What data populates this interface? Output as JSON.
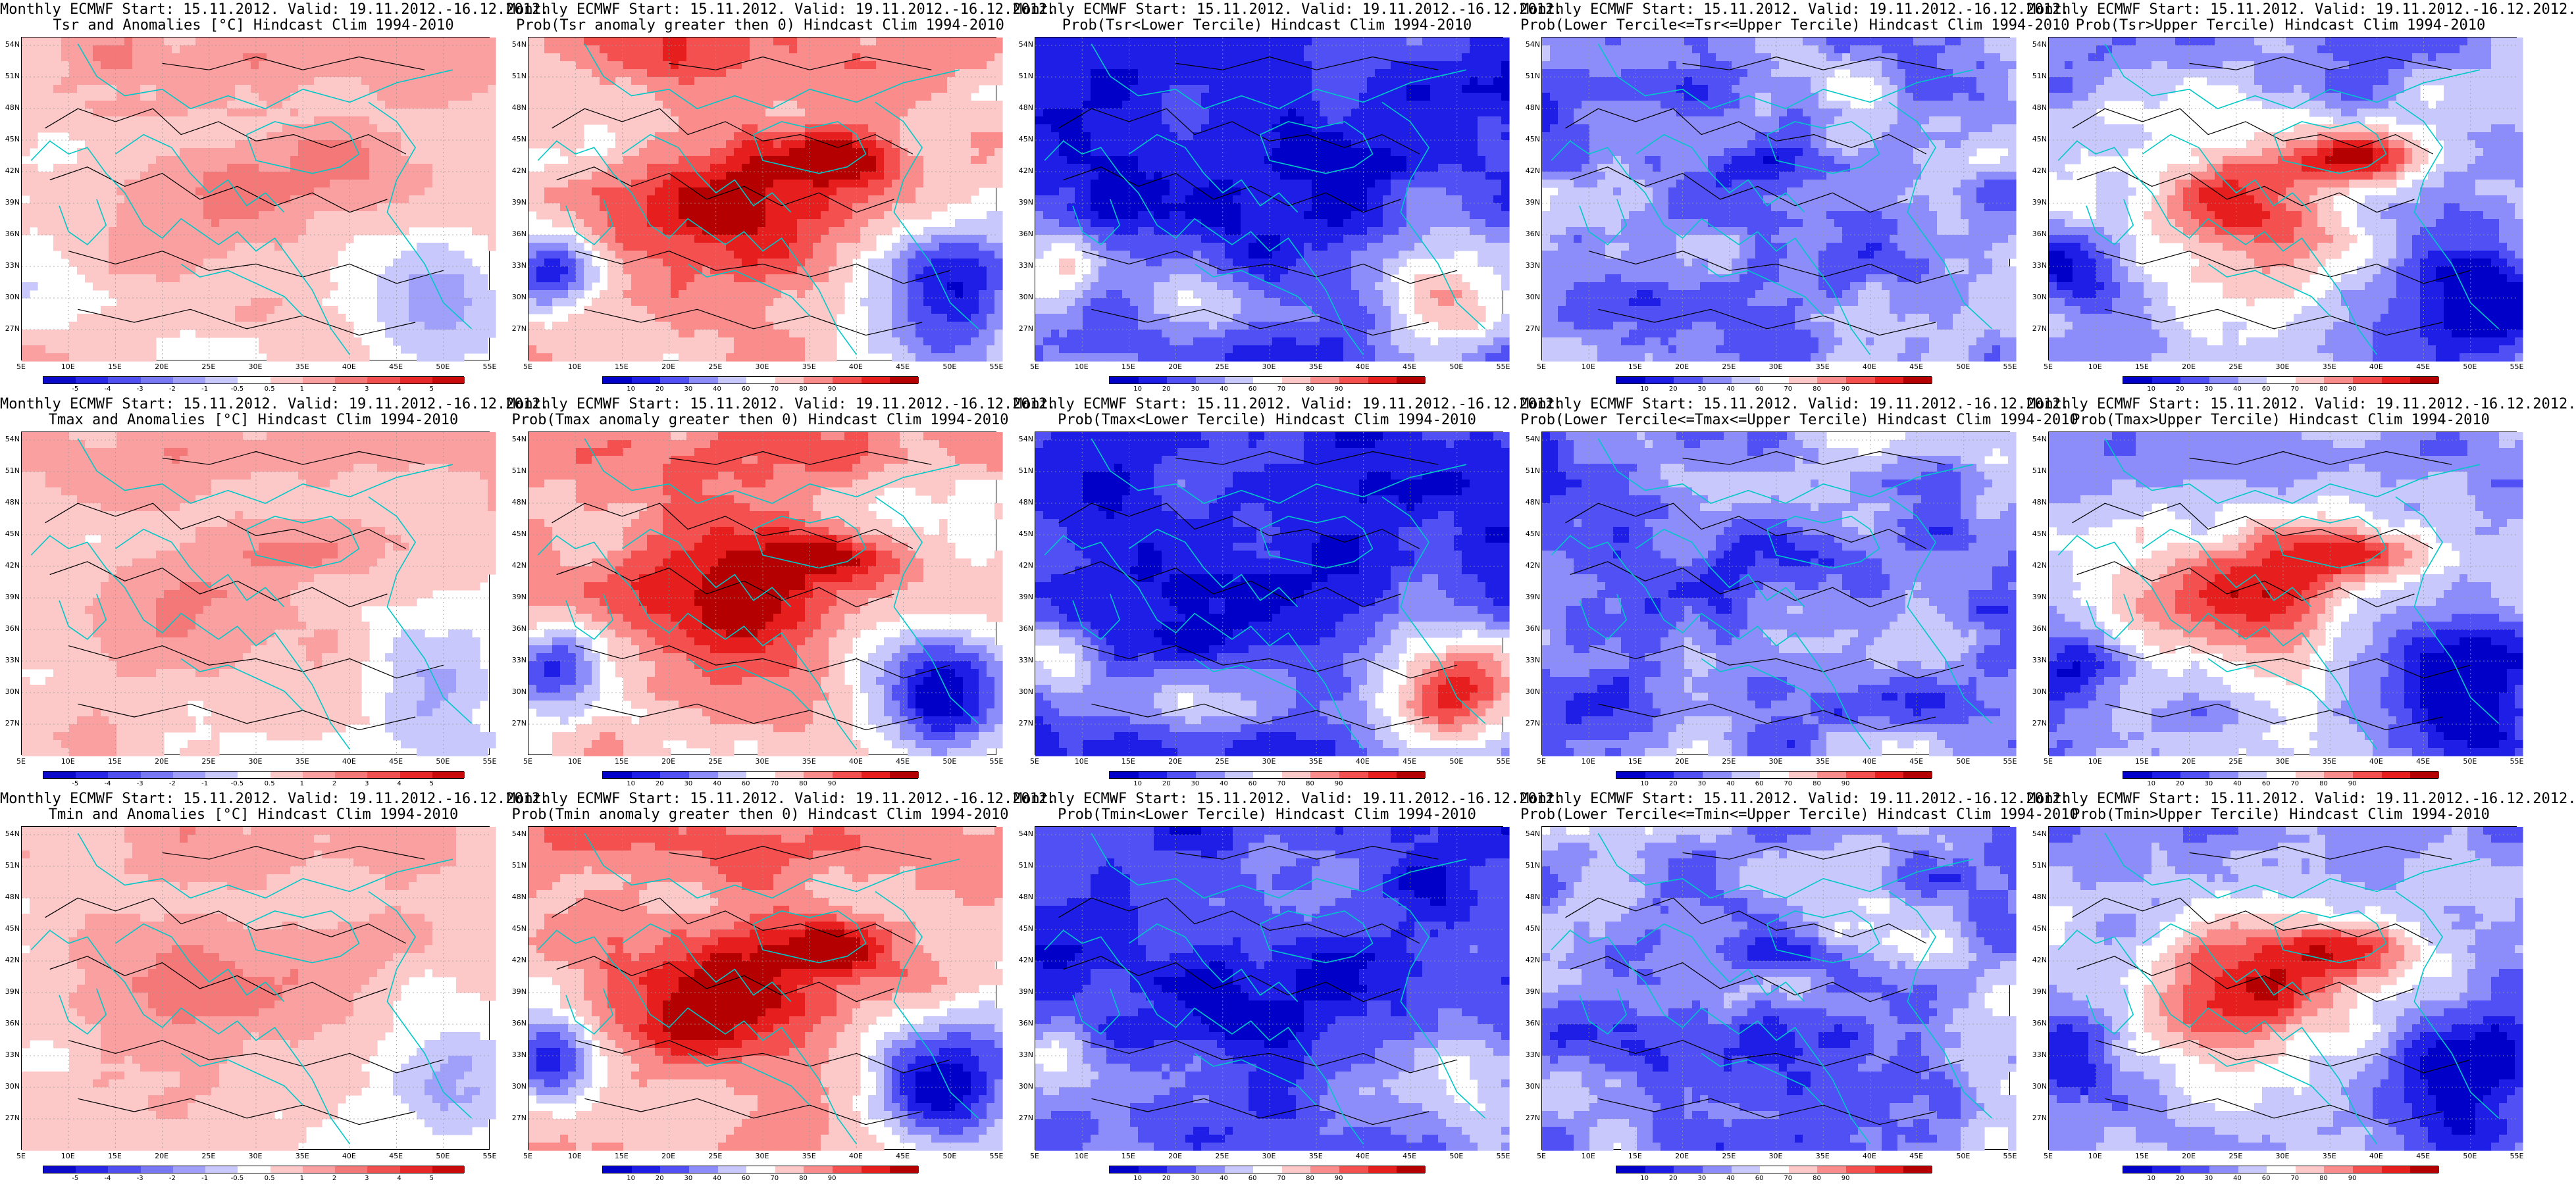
{
  "title_line1": "Monthly ECMWF Start: 15.11.2012. Valid: 19.11.2012.-16.12.2012.",
  "variables": [
    "Tsr",
    "Tmax",
    "Tmin"
  ],
  "panel_titles": [
    [
      "Tsr and Anomalies [°C] Hindcast Clim 1994-2010",
      "Prob(Tsr anomaly greater then 0) Hindcast Clim 1994-2010",
      "Prob(Tsr<Lower Tercile) Hindcast Clim 1994-2010",
      "Prob(Lower Tercile<=Tsr<=Upper Tercile) Hindcast Clim 1994-2010",
      "Prob(Tsr>Upper Tercile) Hindcast Clim 1994-2010"
    ],
    [
      "Tmax and Anomalies [°C] Hindcast Clim 1994-2010",
      "Prob(Tmax anomaly greater then 0) Hindcast Clim 1994-2010",
      "Prob(Tmax<Lower Tercile) Hindcast Clim 1994-2010",
      "Prob(Lower Tercile<=Tmax<=Upper Tercile) Hindcast Clim 1994-2010",
      "Prob(Tmax>Upper Tercile) Hindcast Clim 1994-2010"
    ],
    [
      "Tmin and Anomalies [°C] Hindcast Clim 1994-2010",
      "Prob(Tmin anomaly greater then 0) Hindcast Clim 1994-2010",
      "Prob(Tmin<Lower Tercile) Hindcast Clim 1994-2010",
      "Prob(Lower Tercile<=Tmin<=Upper Tercile) Hindcast Clim 1994-2010",
      "Prob(Tmin>Upper Tercile) Hindcast Clim 1994-2010"
    ]
  ],
  "panel_kinds": [
    "anomaly",
    "prob_above_zero",
    "prob_lower",
    "prob_middle",
    "prob_upper"
  ],
  "lat_labels": [
    "54N",
    "51N",
    "48N",
    "45N",
    "42N",
    "39N",
    "36N",
    "33N",
    "30N",
    "27N"
  ],
  "lon_labels": [
    "5E",
    "10E",
    "15E",
    "20E",
    "25E",
    "30E",
    "35E",
    "40E",
    "45E",
    "50E",
    "55E"
  ],
  "anomaly_scale": {
    "labels": [
      "-5",
      "-4",
      "-3",
      "-2",
      "-1",
      "-0.5",
      "0.5",
      "1",
      "2",
      "3",
      "4",
      "5"
    ],
    "colors": [
      "#0a0ac8",
      "#2828e6",
      "#5050f0",
      "#7878f5",
      "#a0a0fa",
      "#c8c8fc",
      "#ffffff",
      "#fcc8c8",
      "#faa0a0",
      "#f57878",
      "#f05050",
      "#e62828",
      "#c80a0a"
    ]
  },
  "probability_scale": {
    "labels": [
      "10",
      "20",
      "30",
      "40",
      "60",
      "70",
      "80",
      "90"
    ],
    "colors": [
      "#0000c8",
      "#1e1ee6",
      "#5050f5",
      "#8c8cfa",
      "#c8c8fc",
      "#ffffff",
      "#fcc8c8",
      "#fa8c8c",
      "#f55050",
      "#e61e1e",
      "#b40000"
    ]
  },
  "map_colors": {
    "coastline": "#00c8c8",
    "contour": "#000000",
    "gridline": "#9a9a9a"
  }
}
